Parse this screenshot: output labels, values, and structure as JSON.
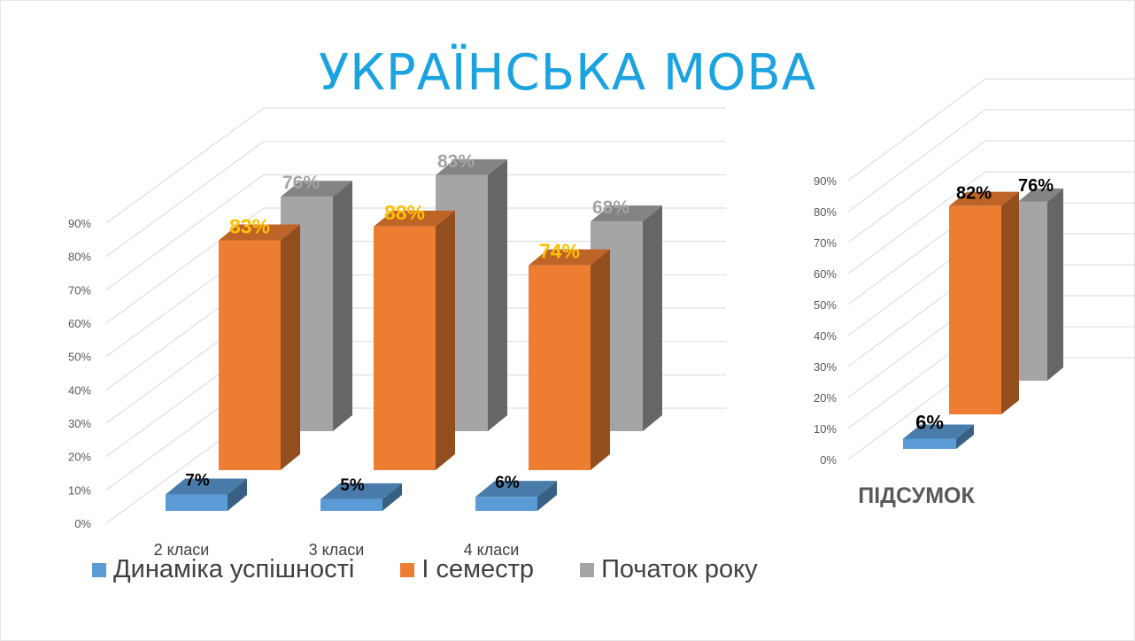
{
  "title": "УКРАЇНСЬКА МОВА",
  "colors": {
    "blue": "#5b9bd5",
    "orange": "#ed7d31",
    "gray": "#a5a5a5",
    "title": "#1aa3e0",
    "label_yellow": "#ffc000",
    "label_gray": "#a5a5a5",
    "label_dark": "#000000"
  },
  "chart_data": [
    {
      "type": "bar",
      "style": "3d-column",
      "categories": [
        "2 класи",
        "3 класи",
        "4 класи"
      ],
      "series": [
        {
          "name": "Динаміка успішності",
          "values": [
            7,
            5,
            6
          ],
          "color": "#5b9bd5"
        },
        {
          "name": "І семестр",
          "values": [
            83,
            88,
            74
          ],
          "color": "#ed7d31"
        },
        {
          "name": "Початок року",
          "values": [
            76,
            83,
            68
          ],
          "color": "#a5a5a5"
        }
      ],
      "data_labels": [
        [
          "7%",
          "5%",
          "6%"
        ],
        [
          "83%",
          "88%",
          "74%"
        ],
        [
          "76%",
          "83%",
          "68%"
        ]
      ],
      "ylim": [
        0,
        90
      ],
      "y_ticks": [
        "0%",
        "10%",
        "20%",
        "30%",
        "40%",
        "50%",
        "60%",
        "70%",
        "80%",
        "90%"
      ],
      "grid": true,
      "legend": "bottom"
    },
    {
      "type": "bar",
      "style": "3d-column",
      "categories": [
        "ПІДСУМОК"
      ],
      "series": [
        {
          "name": "Динаміка успішності",
          "values": [
            6
          ],
          "color": "#5b9bd5"
        },
        {
          "name": "І семестр",
          "values": [
            82
          ],
          "color": "#ed7d31"
        },
        {
          "name": "Початок року",
          "values": [
            76
          ],
          "color": "#a5a5a5"
        }
      ],
      "data_labels": [
        [
          "6%"
        ],
        [
          "82%"
        ],
        [
          "76%"
        ]
      ],
      "ylim": [
        0,
        90
      ],
      "y_ticks": [
        "0%",
        "10%",
        "20%",
        "30%",
        "40%",
        "50%",
        "60%",
        "70%",
        "80%",
        "90%"
      ],
      "grid": true
    }
  ],
  "legend": [
    {
      "label": "Динаміка успішності",
      "color": "#5b9bd5"
    },
    {
      "label": "І семестр",
      "color": "#ed7d31"
    },
    {
      "label": "Початок року",
      "color": "#a5a5a5"
    }
  ]
}
